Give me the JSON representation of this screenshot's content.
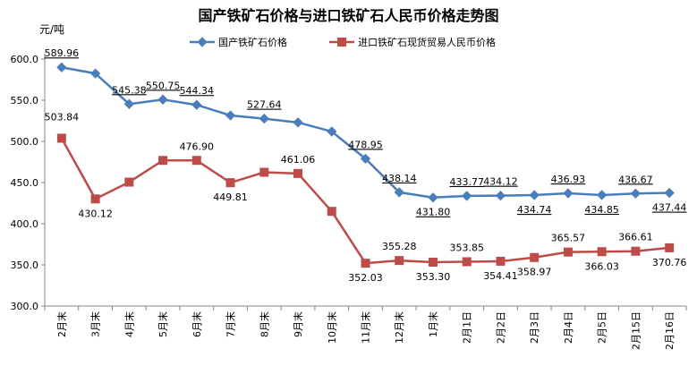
{
  "chart_data": {
    "type": "line",
    "title": "国产铁矿石价格与进口铁矿石人民币价格走势图",
    "ylabel": "元/吨",
    "xlabel": "",
    "ylim": [
      300,
      600
    ],
    "yticks": [
      "300.0",
      "350.0",
      "400.0",
      "450.0",
      "500.0",
      "550.0",
      "600.0"
    ],
    "grid": false,
    "legend_position": "top",
    "categories": [
      "2月末",
      "3月末",
      "4月末",
      "5月末",
      "6月末",
      "7月末",
      "8月末",
      "9月末",
      "10月末",
      "11月末",
      "12月末",
      "1月末",
      "2月1日",
      "2月2日",
      "2月3日",
      "2月4日",
      "2月5日",
      "2月15日",
      "2月16日"
    ],
    "series": [
      {
        "name": "国产铁矿石价格",
        "color": "#4a7ebb",
        "values": [
          589.96,
          582.5,
          545.38,
          550.75,
          544.34,
          531.5,
          527.64,
          523,
          512,
          478.95,
          438.14,
          431.8,
          433.77,
          434.12,
          434.74,
          436.93,
          434.85,
          436.67,
          437.44
        ],
        "labels": [
          "589.96",
          null,
          "545.38",
          "550.75",
          "544.34",
          null,
          "527.64",
          null,
          null,
          "478.95",
          "438.14",
          "431.80",
          "433.77",
          "434.12",
          "434.74",
          "436.93",
          "434.85",
          "436.67",
          "437.44"
        ]
      },
      {
        "name": "进口铁矿石现货贸易人民币价格",
        "color": "#be4b48",
        "values": [
          503.84,
          430.12,
          450.5,
          476.9,
          476.9,
          449.81,
          462.5,
          461.06,
          415,
          352.03,
          355.28,
          353.3,
          353.85,
          354.41,
          358.97,
          365.57,
          366.03,
          366.61,
          370.76
        ],
        "labels": [
          "503.84",
          "430.12",
          null,
          null,
          "476.90",
          "449.81",
          null,
          "461.06",
          null,
          "352.03",
          "355.28",
          "353.30",
          "353.85",
          "354.41",
          "358.97",
          "365.57",
          "366.03",
          "366.61",
          "370.76"
        ]
      }
    ]
  }
}
